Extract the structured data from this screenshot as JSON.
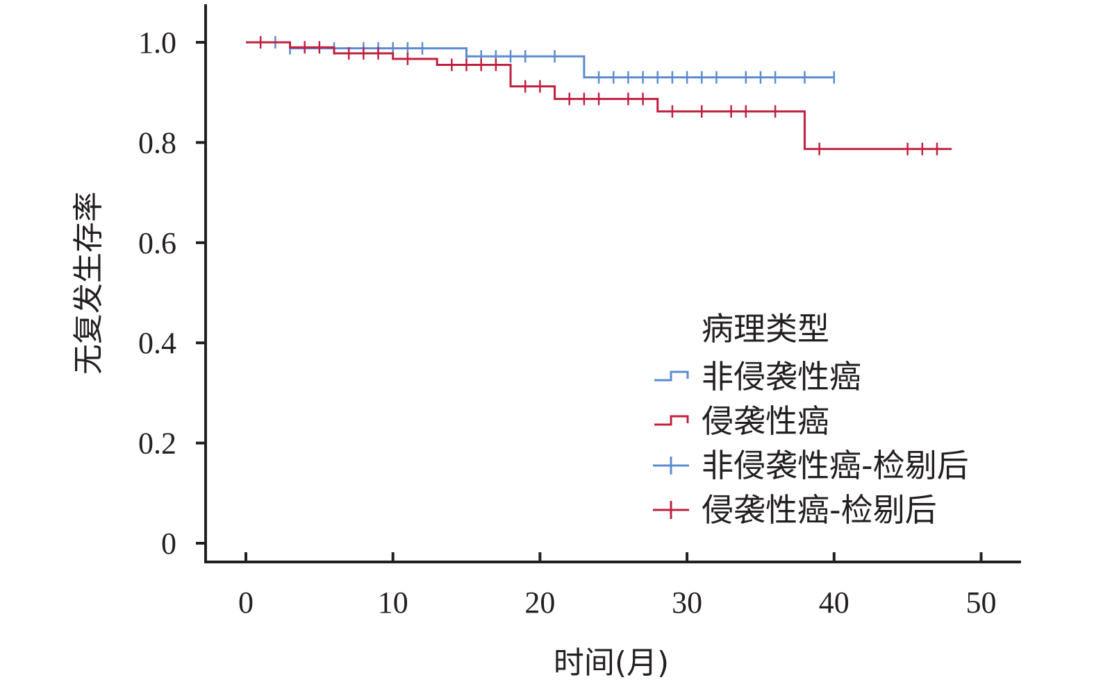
{
  "chart_data": {
    "type": "line",
    "title": "",
    "xlabel": "时间(月)",
    "ylabel": "无复发生存率",
    "xlim": [
      0,
      50
    ],
    "ylim": [
      0,
      1.0
    ],
    "x_ticks": [
      "0",
      "10",
      "20",
      "30",
      "40",
      "50"
    ],
    "y_ticks": [
      "0",
      "0.2",
      "0.4",
      "0.6",
      "0.8",
      "1.0"
    ],
    "x_tick_values": [
      0,
      10,
      20,
      30,
      40,
      50
    ],
    "y_tick_values": [
      0,
      0.2,
      0.4,
      0.6,
      0.8,
      1.0
    ],
    "grid": false,
    "legend": {
      "title": "病理类型",
      "placement": "bottom-right",
      "entries": [
        {
          "label": "非侵袭性癌",
          "color": "#5b8bd0",
          "marker": "step"
        },
        {
          "label": "侵袭性癌",
          "color": "#c0203f",
          "marker": "step"
        },
        {
          "label": "非侵袭性癌-检剔后",
          "color": "#5b8bd0",
          "marker": "plus"
        },
        {
          "label": "侵袭性癌-检剔后",
          "color": "#c0203f",
          "marker": "plus"
        }
      ]
    },
    "series": [
      {
        "name": "非侵袭性癌",
        "color": "#5b8bd0",
        "steps": [
          [
            0,
            1.0
          ],
          [
            3,
            0.988
          ],
          [
            15,
            0.972
          ],
          [
            23,
            0.93
          ],
          [
            40,
            0.93
          ]
        ],
        "censored": [
          2,
          3,
          6,
          8,
          9,
          10,
          11,
          12,
          15,
          16,
          17,
          18,
          19,
          21,
          24,
          25,
          26,
          27,
          28,
          29,
          30,
          31,
          32,
          34,
          35,
          36,
          38,
          40
        ]
      },
      {
        "name": "侵袭性癌",
        "color": "#c0203f",
        "steps": [
          [
            0,
            1.0
          ],
          [
            3,
            0.99
          ],
          [
            6,
            0.978
          ],
          [
            10,
            0.967
          ],
          [
            13,
            0.955
          ],
          [
            18,
            0.912
          ],
          [
            21,
            0.887
          ],
          [
            28,
            0.862
          ],
          [
            38,
            0.787
          ],
          [
            48,
            0.787
          ]
        ],
        "censored": [
          1,
          4,
          5,
          7,
          8,
          9,
          11,
          14,
          15,
          16,
          17,
          19,
          20,
          22,
          23,
          24,
          26,
          27,
          29,
          31,
          33,
          34,
          36,
          39,
          45,
          46,
          47
        ]
      }
    ]
  }
}
